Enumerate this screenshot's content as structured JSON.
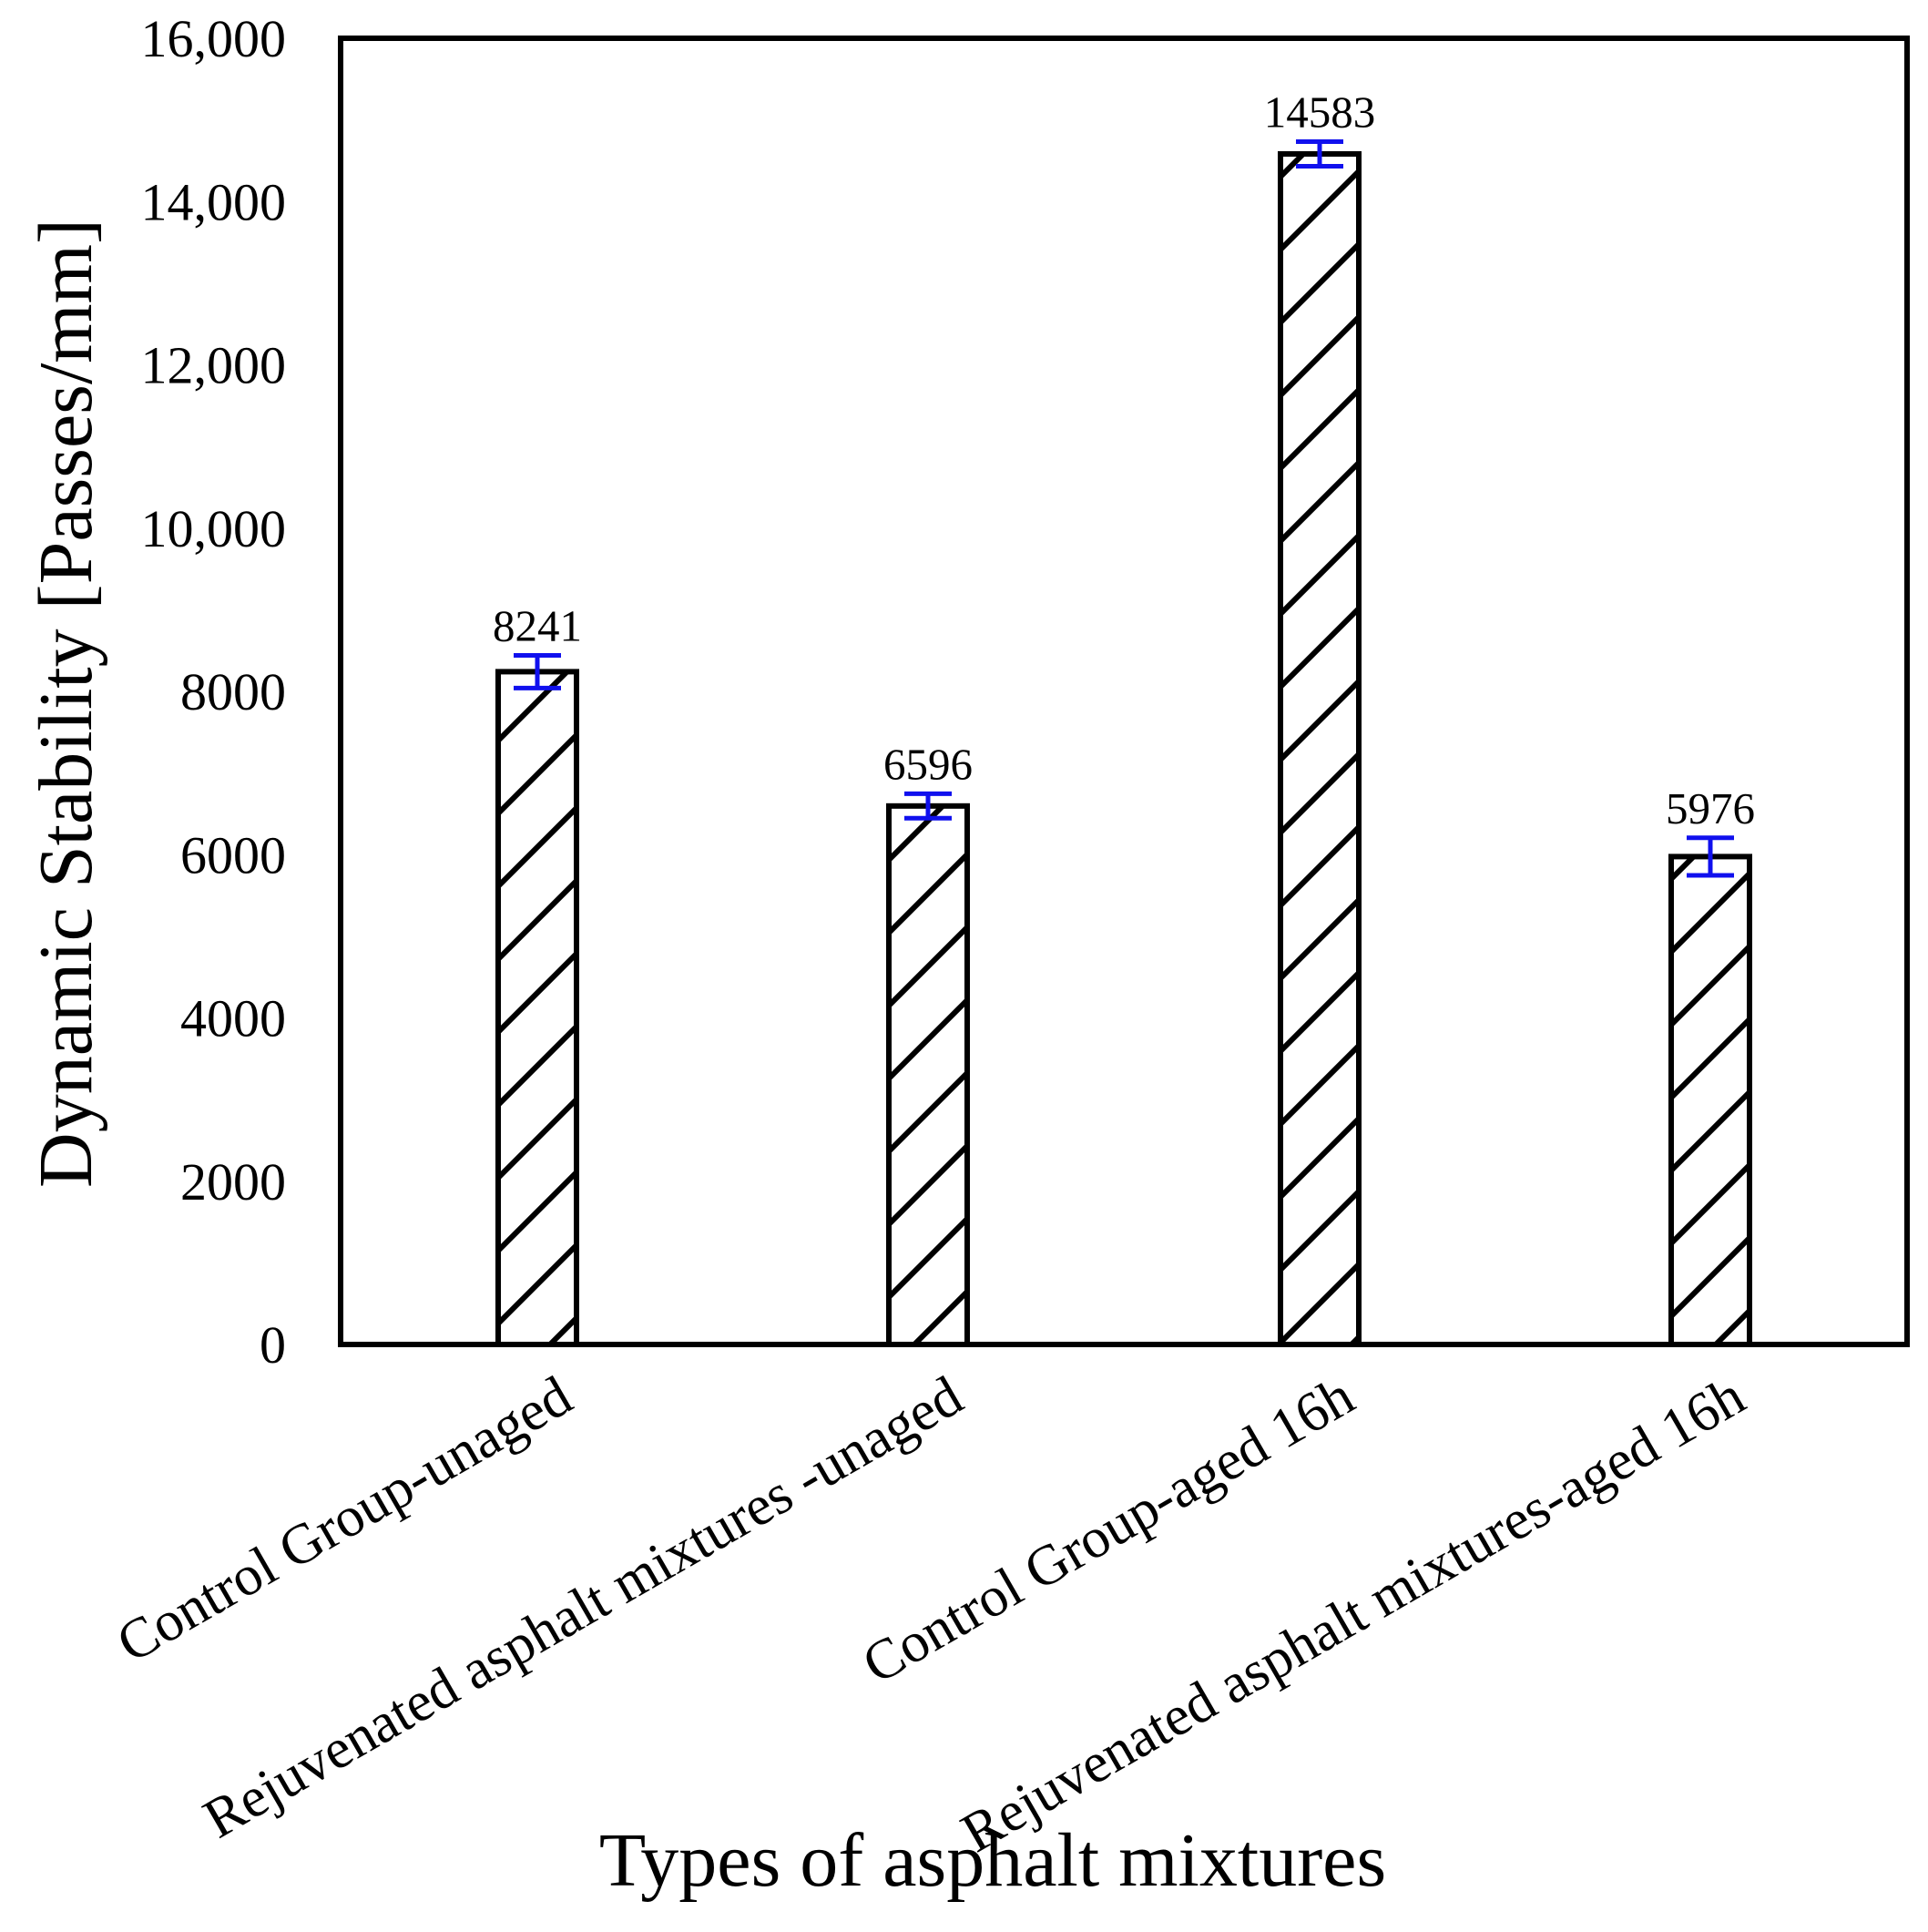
{
  "chart_data": {
    "type": "bar",
    "title": "",
    "xlabel": "Types of asphalt mixtures",
    "ylabel": "Dynamic Stability [Passes/mm]",
    "ylim": [
      0,
      16000
    ],
    "yticks": [
      0,
      2000,
      4000,
      6000,
      8000,
      10000,
      12000,
      14000,
      16000
    ],
    "ytick_labels": [
      "0",
      "2000",
      "4000",
      "6000",
      "8000",
      "10,000",
      "12,000",
      "14,000",
      "16,000"
    ],
    "categories": [
      "Control Group-unaged",
      "Rejuvenated asphalt mixtures -unaged",
      "Control Group-aged 16h",
      "Rejuvenated asphalt mixtures-aged 16h"
    ],
    "values": [
      8241,
      6596,
      14583,
      5976
    ],
    "data_labels": [
      "8241",
      "6596",
      "14583",
      "5976"
    ],
    "error": [
      200,
      150,
      150,
      230
    ],
    "grid": false,
    "bar_pattern": "diagonal hatch",
    "error_bar_color": "#1010ee"
  }
}
